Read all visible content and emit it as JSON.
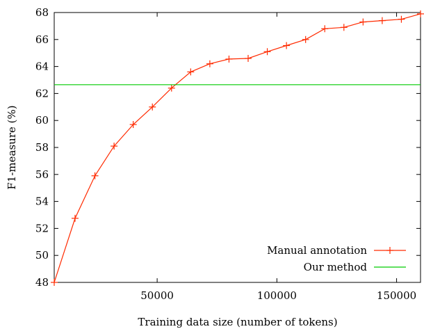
{
  "chart_data": {
    "type": "line",
    "title": "",
    "xlabel": "Training data size (number of tokens)",
    "ylabel": "F1-measure (%)",
    "xlim": [
      7000,
      160000
    ],
    "ylim": [
      48,
      68
    ],
    "grid": false,
    "legend_position": "bottom-right",
    "x_ticks": [
      {
        "value": 50000,
        "label": "50000"
      },
      {
        "value": 100000,
        "label": "100000"
      },
      {
        "value": 150000,
        "label": "150000"
      }
    ],
    "y_ticks": [
      {
        "value": 48,
        "label": "48"
      },
      {
        "value": 50,
        "label": "50"
      },
      {
        "value": 52,
        "label": "52"
      },
      {
        "value": 54,
        "label": "54"
      },
      {
        "value": 56,
        "label": "56"
      },
      {
        "value": 58,
        "label": "58"
      },
      {
        "value": 60,
        "label": "60"
      },
      {
        "value": 62,
        "label": "62"
      },
      {
        "value": 64,
        "label": "64"
      },
      {
        "value": 66,
        "label": "66"
      },
      {
        "value": 68,
        "label": "68"
      }
    ],
    "series": [
      {
        "name": "Manual annotation",
        "color": "#ff2a00",
        "marker": "plus",
        "x": [
          7000,
          15700,
          24000,
          32000,
          40000,
          48000,
          56000,
          64000,
          72000,
          80000,
          88000,
          96000,
          104000,
          112000,
          120000,
          128000,
          136000,
          144000,
          152000,
          160000
        ],
        "y": [
          48.0,
          52.75,
          55.9,
          58.1,
          59.7,
          61.0,
          62.4,
          63.6,
          64.2,
          64.55,
          64.6,
          65.1,
          65.55,
          66.0,
          66.8,
          66.9,
          67.3,
          67.4,
          67.5,
          67.9
        ]
      },
      {
        "name": "Our method",
        "color": "#00cc00",
        "marker": "none",
        "x": [
          7000,
          160000
        ],
        "y": [
          62.65,
          62.65
        ]
      }
    ]
  }
}
